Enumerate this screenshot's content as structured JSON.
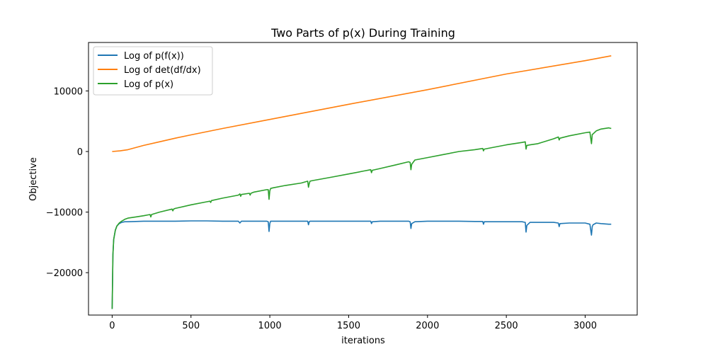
{
  "chart_data": {
    "type": "line",
    "title": "Two Parts of p(x) During Training",
    "xlabel": "iterations",
    "ylabel": "Objective",
    "xlim": [
      -150,
      3330
    ],
    "ylim": [
      -27000,
      18000
    ],
    "xticks": [
      0,
      500,
      1000,
      1500,
      2000,
      2500,
      3000
    ],
    "xtick_labels": [
      "0",
      "500",
      "1000",
      "1500",
      "2000",
      "2500",
      "3000"
    ],
    "yticks": [
      -20000,
      -10000,
      0,
      10000
    ],
    "ytick_labels": [
      "−20000",
      "−10000",
      "0",
      "10000"
    ],
    "grid": false,
    "legend_position": "top-left",
    "series": [
      {
        "name": "Log of p(f(x))",
        "color": "#1f77b4",
        "x": [
          0,
          2,
          5,
          10,
          20,
          30,
          45,
          60,
          80,
          100,
          150,
          200,
          300,
          400,
          500,
          600,
          700,
          800,
          810,
          820,
          900,
          980,
          990,
          995,
          1000,
          1005,
          1020,
          1100,
          1200,
          1240,
          1245,
          1250,
          1255,
          1270,
          1400,
          1500,
          1600,
          1640,
          1645,
          1650,
          1700,
          1800,
          1880,
          1890,
          1895,
          1900,
          1920,
          2000,
          2100,
          2200,
          2300,
          2350,
          2355,
          2360,
          2400,
          2500,
          2600,
          2620,
          2625,
          2630,
          2650,
          2700,
          2800,
          2830,
          2835,
          2840,
          2900,
          3000,
          3030,
          3040,
          3045,
          3050,
          3070,
          3100,
          3150,
          3165
        ],
        "values": [
          -26000,
          -22000,
          -17000,
          -14500,
          -13000,
          -12300,
          -11900,
          -11700,
          -11600,
          -11600,
          -11550,
          -11500,
          -11500,
          -11500,
          -11450,
          -11450,
          -11500,
          -11500,
          -11800,
          -11500,
          -11500,
          -11500,
          -11600,
          -13200,
          -11900,
          -11500,
          -11500,
          -11500,
          -11500,
          -11500,
          -12100,
          -11600,
          -11500,
          -11500,
          -11500,
          -11500,
          -11500,
          -11500,
          -11900,
          -11600,
          -11500,
          -11500,
          -11500,
          -11600,
          -12700,
          -11900,
          -11600,
          -11500,
          -11500,
          -11500,
          -11550,
          -11550,
          -12000,
          -11600,
          -11600,
          -11600,
          -11600,
          -11700,
          -13300,
          -12200,
          -11700,
          -11700,
          -11700,
          -11800,
          -12400,
          -11900,
          -11800,
          -11800,
          -12000,
          -13800,
          -12400,
          -12100,
          -11800,
          -11900,
          -12000,
          -12000
        ]
      },
      {
        "name": "Log of det(df/dx)",
        "color": "#ff7f0e",
        "x": [
          0,
          50,
          100,
          150,
          200,
          300,
          400,
          500,
          700,
          1000,
          1500,
          2000,
          2500,
          3000,
          3165
        ],
        "values": [
          0,
          100,
          300,
          650,
          1000,
          1600,
          2200,
          2750,
          3800,
          5300,
          7800,
          10200,
          12800,
          15000,
          15800
        ]
      },
      {
        "name": "Log of p(x)",
        "color": "#2ca02c",
        "x": [
          0,
          2,
          5,
          10,
          20,
          30,
          45,
          60,
          80,
          100,
          150,
          200,
          240,
          245,
          250,
          300,
          380,
          385,
          390,
          400,
          500,
          600,
          620,
          625,
          630,
          700,
          800,
          810,
          815,
          820,
          870,
          875,
          880,
          900,
          980,
          990,
          995,
          1000,
          1005,
          1020,
          1100,
          1200,
          1240,
          1245,
          1250,
          1255,
          1270,
          1400,
          1500,
          1600,
          1640,
          1645,
          1650,
          1700,
          1800,
          1880,
          1890,
          1895,
          1900,
          1920,
          2000,
          2100,
          2200,
          2300,
          2350,
          2355,
          2360,
          2400,
          2500,
          2600,
          2620,
          2625,
          2630,
          2650,
          2700,
          2800,
          2830,
          2835,
          2840,
          2900,
          3000,
          3030,
          3040,
          3045,
          3050,
          3070,
          3100,
          3150,
          3165
        ],
        "values": [
          -26000,
          -22000,
          -17000,
          -14500,
          -13000,
          -12300,
          -11800,
          -11500,
          -11200,
          -11000,
          -10800,
          -10600,
          -10400,
          -10800,
          -10400,
          -10000,
          -9500,
          -9800,
          -9500,
          -9400,
          -8800,
          -8300,
          -8200,
          -8400,
          -8100,
          -7700,
          -7200,
          -7000,
          -7400,
          -7100,
          -6900,
          -7200,
          -6900,
          -6700,
          -6300,
          -6300,
          -7900,
          -6500,
          -6100,
          -6000,
          -5600,
          -5200,
          -4900,
          -5900,
          -5300,
          -4900,
          -4800,
          -4200,
          -3700,
          -3200,
          -3000,
          -3500,
          -3100,
          -2800,
          -2200,
          -1700,
          -1800,
          -3000,
          -2100,
          -1400,
          -1000,
          -500,
          0,
          300,
          500,
          100,
          400,
          600,
          1100,
          1500,
          1600,
          400,
          1000,
          1100,
          1300,
          2100,
          2400,
          1900,
          2200,
          2600,
          3100,
          3200,
          1300,
          2800,
          2900,
          3400,
          3700,
          3900,
          3800
        ]
      }
    ]
  }
}
